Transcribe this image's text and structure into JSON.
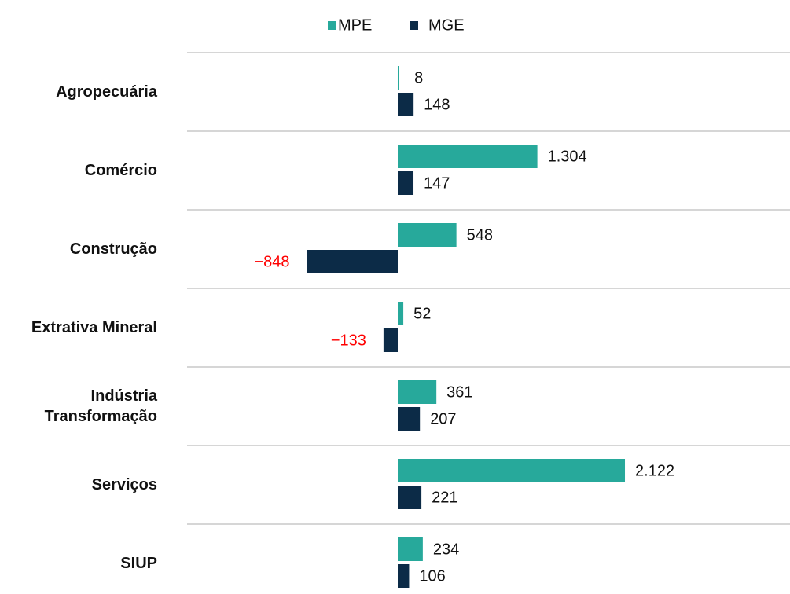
{
  "chart_data": {
    "type": "bar",
    "orientation": "horizontal",
    "categories": [
      "Agropecuária",
      "Comércio",
      "Construção",
      "Extrativa Mineral",
      "Indústria Transformação",
      "Serviços",
      "SIUP"
    ],
    "series": [
      {
        "name": "MPE",
        "color": "#27a99b",
        "values": [
          8,
          1304,
          548,
          52,
          361,
          2122,
          234
        ],
        "value_labels": [
          "8",
          "1.304",
          "548",
          "52",
          "361",
          "2.122",
          "234"
        ]
      },
      {
        "name": "MGE",
        "color": "#0c2b47",
        "values": [
          148,
          147,
          -848,
          -133,
          207,
          221,
          106
        ],
        "value_labels": [
          "148",
          "147",
          "−848",
          "−133",
          "207",
          "221",
          "106"
        ]
      }
    ],
    "negative_label_color": "#ff0000",
    "legend": "top"
  }
}
